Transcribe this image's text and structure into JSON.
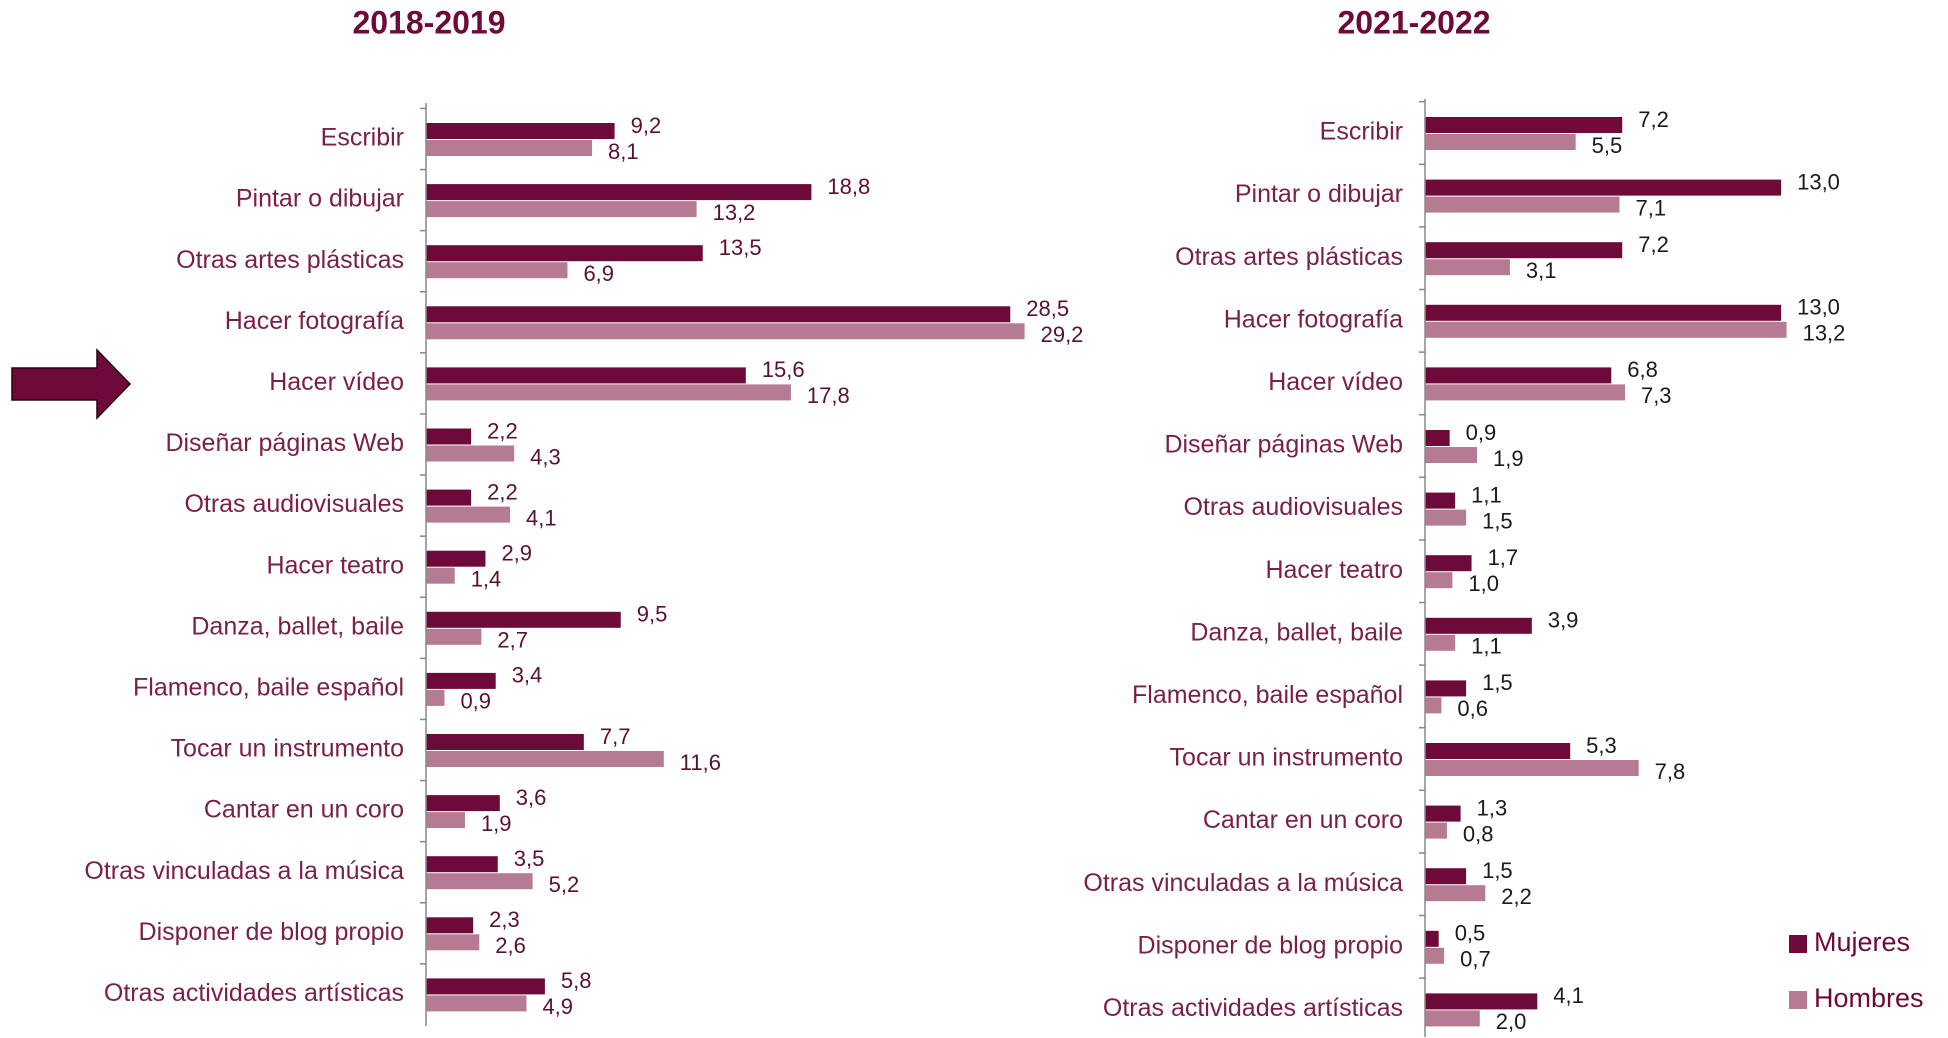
{
  "chart_data": [
    {
      "type": "bar",
      "orientation": "horizontal",
      "title": "2018-2019",
      "categories": [
        "Escribir",
        "Pintar o dibujar",
        "Otras artes plásticas",
        "Hacer fotografía",
        "Hacer vídeo",
        "Diseñar páginas Web",
        "Otras audiovisuales",
        "Hacer teatro",
        "Danza, ballet, baile",
        "Flamenco, baile español",
        "Tocar un instrumento",
        "Cantar en un coro",
        "Otras vinculadas a la música",
        "Disponer de blog propio",
        "Otras actividades artísticas"
      ],
      "xlim": [
        0,
        30
      ],
      "series": [
        {
          "name": "Mujeres",
          "color": "#6d0a3a",
          "values": [
            9.2,
            18.8,
            13.5,
            28.5,
            15.6,
            2.2,
            2.2,
            2.9,
            9.5,
            3.4,
            7.7,
            3.6,
            3.5,
            2.3,
            5.8
          ],
          "value_labels": [
            "9,2",
            "18,8",
            "13,5",
            "28,5",
            "15,6",
            "2,2",
            "2,2",
            "2,9",
            "9,5",
            "3,4",
            "7,7",
            "3,6",
            "3,5",
            "2,3",
            "5,8"
          ]
        },
        {
          "name": "Hombres",
          "color": "#b57b93",
          "values": [
            8.1,
            13.2,
            6.9,
            29.2,
            17.8,
            4.3,
            4.1,
            1.4,
            2.7,
            0.9,
            11.6,
            1.9,
            5.2,
            2.6,
            4.9
          ],
          "value_labels": [
            "8,1",
            "13,2",
            "6,9",
            "29,2",
            "17,8",
            "4,3",
            "4,1",
            "1,4",
            "2,7",
            "0,9",
            "11,6",
            "1,9",
            "5,2",
            "2,6",
            "4,9"
          ]
        }
      ]
    },
    {
      "type": "bar",
      "orientation": "horizontal",
      "title": "2021-2022",
      "categories": [
        "Escribir",
        "Pintar o dibujar",
        "Otras artes plásticas",
        "Hacer fotografía",
        "Hacer vídeo",
        "Diseñar páginas Web",
        "Otras audiovisuales",
        "Hacer teatro",
        "Danza, ballet, baile",
        "Flamenco, baile español",
        "Tocar un instrumento",
        "Cantar en un coro",
        "Otras vinculadas a la música",
        "Disponer de blog propio",
        "Otras actividades artísticas"
      ],
      "xlim": [
        0,
        14
      ],
      "legend": "bottom-right",
      "series": [
        {
          "name": "Mujeres",
          "color": "#6d0a3a",
          "values": [
            7.2,
            13.0,
            7.2,
            13.0,
            6.8,
            0.9,
            1.1,
            1.7,
            3.9,
            1.5,
            5.3,
            1.3,
            1.5,
            0.5,
            4.1
          ],
          "value_labels": [
            "7,2",
            "13,0",
            "7,2",
            "13,0",
            "6,8",
            "0,9",
            "1,1",
            "1,7",
            "3,9",
            "1,5",
            "5,3",
            "1,3",
            "1,5",
            "0,5",
            "4,1"
          ]
        },
        {
          "name": "Hombres",
          "color": "#b57b93",
          "values": [
            5.5,
            7.1,
            3.1,
            13.2,
            7.3,
            1.9,
            1.5,
            1.0,
            1.1,
            0.6,
            7.8,
            0.8,
            2.2,
            0.7,
            2.0
          ],
          "value_labels": [
            "5,5",
            "7,1",
            "3,1",
            "13,2",
            "7,3",
            "1,9",
            "1,5",
            "1,0",
            "1,1",
            "0,6",
            "7,8",
            "0,8",
            "2,2",
            "0,7",
            "2,0"
          ]
        }
      ]
    }
  ]
}
